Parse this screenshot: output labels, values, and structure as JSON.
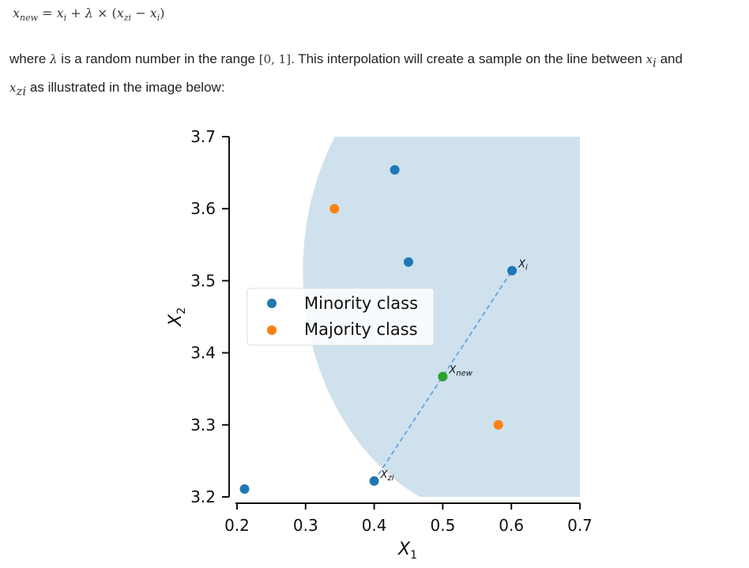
{
  "formula": {
    "lhs_base": "x",
    "lhs_sub": "new",
    "eq": "=",
    "rhs_1": "x",
    "rhs_1_sub": "i",
    "plus": "+",
    "lambda": "λ",
    "times": "×",
    "paren_open": "(",
    "rhs_2": "x",
    "rhs_2_sub": "zi",
    "minus": "−",
    "rhs_3": "x",
    "rhs_3_sub": "i",
    "paren_close": ")"
  },
  "prose": {
    "where": "where",
    "lambda": "λ",
    "text_1": "is a random number in the range",
    "range": "[0, 1]",
    "text_2": ". This interpolation will create a sample on the line between",
    "xi_base": "x",
    "xi_sub": "i",
    "and": "and",
    "xzi_base": "x",
    "xzi_sub": "zi",
    "text_3": "as illustrated in the image below:"
  },
  "chart_data": {
    "type": "scatter",
    "xlabel": "X₁",
    "ylabel": "X₂",
    "xlim": [
      0.2,
      0.7
    ],
    "ylim": [
      3.2,
      3.7
    ],
    "xticks": [
      "0.2",
      "0.3",
      "0.4",
      "0.5",
      "0.6",
      "0.7"
    ],
    "yticks": [
      "3.2",
      "3.3",
      "3.4",
      "3.5",
      "3.6",
      "3.7"
    ],
    "grid": false,
    "legend_position": "center-left",
    "region": {
      "description": "circle centered on x_i",
      "center": [
        0.601,
        3.514
      ],
      "radius_x": 0.305,
      "radius_y": 0.35,
      "color": "#cfe1ed"
    },
    "series": [
      {
        "name": "Minority class",
        "color": "#1f77b4",
        "x": [
          0.211,
          0.43,
          0.45,
          0.601,
          0.4
        ],
        "y": [
          3.211,
          3.654,
          3.526,
          3.514,
          3.222
        ]
      },
      {
        "name": "Majority class",
        "color": "#ff7f0e",
        "x": [
          0.342,
          0.581
        ],
        "y": [
          3.6,
          3.3
        ]
      },
      {
        "name": "",
        "color": "#2ca02c",
        "x": [
          0.5
        ],
        "y": [
          3.367
        ]
      }
    ],
    "interpolation_line": {
      "from": [
        0.4,
        3.222
      ],
      "to": [
        0.601,
        3.514
      ],
      "color": "#6fa8dc",
      "style": "dashed"
    },
    "annotations": [
      {
        "base": "X",
        "sub": "i",
        "x": 0.601,
        "y": 3.514
      },
      {
        "base": "X",
        "sub": "new",
        "x": 0.5,
        "y": 3.367
      },
      {
        "base": "X",
        "sub": "zi",
        "x": 0.4,
        "y": 3.222
      }
    ]
  }
}
